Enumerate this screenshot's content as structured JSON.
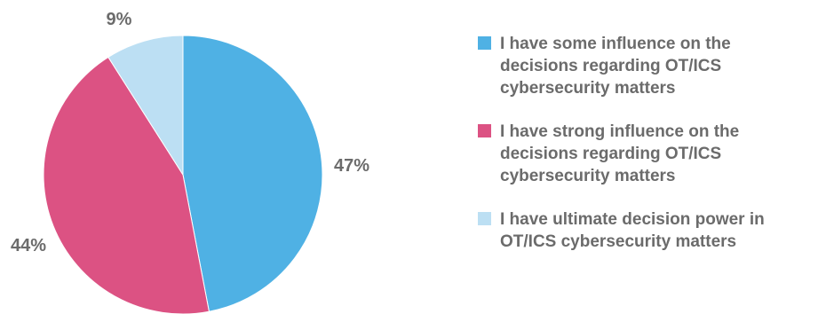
{
  "chart_data": {
    "type": "pie",
    "slices": [
      {
        "label": "I have some influence on the decisions regarding OT/ICS cybersecurity matters",
        "value": 47,
        "value_label": "47%",
        "color": "#4fb1e4"
      },
      {
        "label": "I have strong influence on the decisions regarding OT/ICS cybersecurity matters",
        "value": 44,
        "value_label": "44%",
        "color": "#dc5283"
      },
      {
        "label": "I have ultimate decision power in OT/ICS cybersecurity matters",
        "value": 9,
        "value_label": "9%",
        "color": "#bcdff3"
      }
    ],
    "legend_position": "right"
  }
}
